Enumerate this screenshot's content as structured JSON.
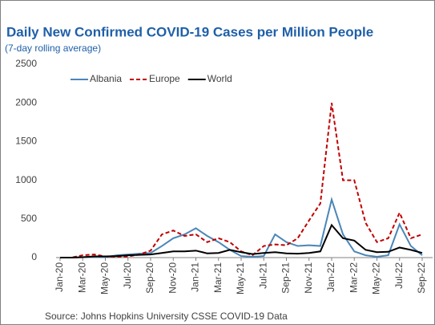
{
  "chart_data": {
    "type": "line",
    "title": "Daily New Confirmed COVID-19 Cases per Million People",
    "subtitle": "(7-day rolling average)",
    "source": "Source:  Johns Hopkins University CSSE COVID-19 Data",
    "categories": [
      "Jan-20",
      null,
      "Mar-20",
      null,
      "May-20",
      null,
      "Jul-20",
      null,
      "Sep-20",
      null,
      "Nov-20",
      null,
      "Jan-21",
      null,
      "Mar-21",
      null,
      "May-21",
      null,
      "Jul-21",
      null,
      "Sep-21",
      null,
      "Nov-21",
      null,
      "Jan-22",
      null,
      "Mar-22",
      null,
      "May-22",
      null,
      "Jul-22",
      null,
      "Sep-22"
    ],
    "series": [
      {
        "name": "Albania",
        "color": "#4a86b8",
        "dash": false,
        "values": [
          0,
          0,
          5,
          10,
          5,
          30,
          40,
          50,
          60,
          150,
          250,
          300,
          380,
          280,
          200,
          100,
          20,
          10,
          20,
          300,
          200,
          150,
          160,
          150,
          750,
          300,
          80,
          30,
          10,
          30,
          430,
          150,
          30
        ]
      },
      {
        "name": "Europe",
        "color": "#c00000",
        "dash": true,
        "values": [
          0,
          0,
          30,
          40,
          15,
          10,
          15,
          40,
          90,
          300,
          350,
          280,
          300,
          200,
          250,
          200,
          80,
          30,
          150,
          170,
          160,
          250,
          480,
          700,
          2000,
          1000,
          1000,
          450,
          200,
          250,
          580,
          250,
          300
        ]
      },
      {
        "name": "World",
        "color": "#000000",
        "dash": false,
        "values": [
          0,
          0,
          5,
          15,
          15,
          20,
          30,
          35,
          40,
          60,
          80,
          80,
          90,
          55,
          60,
          100,
          70,
          45,
          60,
          70,
          55,
          50,
          60,
          80,
          420,
          250,
          220,
          100,
          70,
          75,
          130,
          100,
          60
        ]
      }
    ],
    "ylim": [
      0,
      2500
    ],
    "yticks": [
      0,
      500,
      1000,
      1500,
      2000,
      2500
    ],
    "grid": false,
    "legend": "top-left"
  }
}
